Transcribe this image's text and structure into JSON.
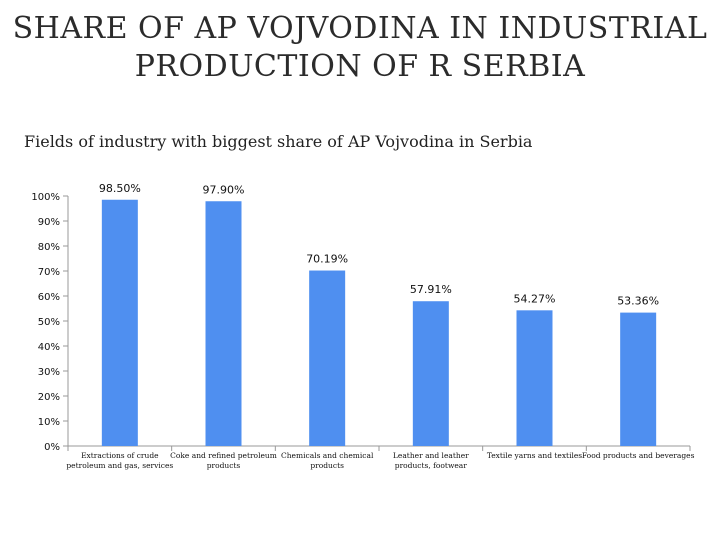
{
  "header": {
    "title_line1": "SHARE OF AP VOJVODINA IN INDUSTRIAL",
    "title_line2": "PRODUCTION OF R SERBIA",
    "subtitle": "Fields of industry with biggest share of AP Vojvodina in Serbia"
  },
  "chart_data": {
    "type": "bar",
    "title": "Fields of industry with biggest share of AP Vojvodina in Serbia",
    "categories": [
      [
        "Extractions of crude",
        "petroleum and gas, services"
      ],
      [
        "Coke and refined petroleum",
        "products"
      ],
      [
        "Chemicals and chemical",
        "products"
      ],
      [
        "Leather and leather",
        "products, footwear"
      ],
      [
        "Textile yarns and textiles"
      ],
      [
        "Food products and beverages"
      ]
    ],
    "values": [
      98.5,
      97.9,
      70.19,
      57.91,
      54.27,
      53.36
    ],
    "data_labels": [
      "98.50%",
      "97.90%",
      "70.19%",
      "57.91%",
      "54.27%",
      "53.36%"
    ],
    "ylim": [
      0,
      100
    ],
    "yticks": [
      "0%",
      "10%",
      "20%",
      "30%",
      "40%",
      "50%",
      "60%",
      "70%",
      "80%",
      "90%",
      "100%"
    ],
    "bar_color": "#4f8ff0",
    "grid": false,
    "legend": "none"
  }
}
